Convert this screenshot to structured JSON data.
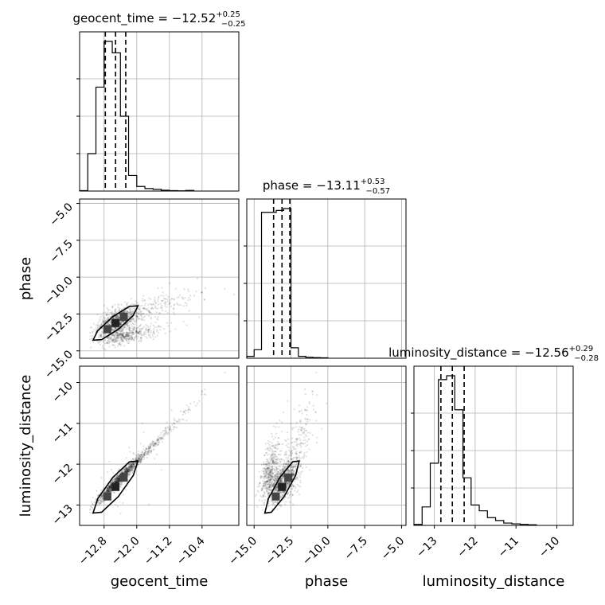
{
  "chart_data": {
    "type": "scatter",
    "subtype": "corner-plot",
    "parameters": [
      "geocent_time",
      "phase",
      "luminosity_distance"
    ],
    "axis_labels": {
      "x": [
        "geocent_time",
        "phase",
        "luminosity_distance"
      ],
      "y": [
        "phase",
        "luminosity_distance"
      ]
    },
    "titles": [
      {
        "name": "geocent_time",
        "median": "−12.52",
        "plus": "+0.25",
        "minus": "−0.25"
      },
      {
        "name": "phase",
        "median": "−13.11",
        "plus": "+0.53",
        "minus": "−0.57"
      },
      {
        "name": "luminosity_distance",
        "median": "−12.56",
        "plus": "+0.29",
        "minus": "−0.28"
      }
    ],
    "ranges": {
      "geocent_time": [
        -13.4,
        -9.5
      ],
      "phase": [
        -15.5,
        -4.7
      ],
      "luminosity_distance": [
        -13.5,
        -9.6
      ]
    },
    "ticks": {
      "geocent_time": [
        -12.8,
        -12.0,
        -11.2,
        -10.4
      ],
      "phase": [
        -15.0,
        -12.5,
        -10.0,
        -7.5,
        -5.0
      ],
      "luminosity_distance": [
        -13,
        -12,
        -11,
        -10
      ]
    },
    "tick_labels": {
      "geocent_time": [
        "−12.8",
        "−12.0",
        "−11.2",
        "−10.4"
      ],
      "phase": [
        "−15.0",
        "−12.5",
        "−10.0",
        "−7.5",
        "−5.0"
      ],
      "luminosity_distance": [
        "−13",
        "−12",
        "−11",
        "−10"
      ]
    },
    "quantile_lines": {
      "geocent_time": [
        -12.77,
        -12.52,
        -12.27
      ],
      "phase": [
        -13.68,
        -13.11,
        -12.58
      ],
      "luminosity_distance": [
        -12.84,
        -12.56,
        -12.27
      ]
    },
    "histograms": {
      "geocent_time": {
        "bin_edges": [
          -13.4,
          -13.2,
          -13.0,
          -12.8,
          -12.6,
          -12.4,
          -12.2,
          -12.0,
          -11.8,
          -11.6,
          -11.4,
          -11.2,
          -11.0,
          -10.8,
          -10.6
        ],
        "counts": [
          2,
          180,
          500,
          720,
          665,
          360,
          75,
          22,
          12,
          8,
          4,
          2,
          1,
          3
        ]
      },
      "phase": {
        "bin_edges": [
          -15.5,
          -15.0,
          -14.5,
          -14.0,
          -13.5,
          -13.0,
          -12.5,
          -12.0,
          -11.5,
          -11.0,
          -10.5,
          -10.0
        ],
        "counts": [
          10,
          45,
          770,
          770,
          780,
          790,
          55,
          10,
          5,
          3,
          2
        ]
      },
      "luminosity_distance": {
        "bin_edges": [
          -13.5,
          -13.3,
          -13.1,
          -12.9,
          -12.7,
          -12.5,
          -12.3,
          -12.1,
          -11.9,
          -11.7,
          -11.5,
          -11.3,
          -11.1,
          -10.9,
          -10.7,
          -10.5
        ],
        "counts": [
          5,
          95,
          320,
          750,
          770,
          595,
          245,
          105,
          75,
          40,
          25,
          12,
          8,
          5,
          3
        ]
      }
    },
    "grid": true,
    "colors": {
      "line": "#000000",
      "grid": "#b0b0b0",
      "scatter": "#000000"
    }
  }
}
